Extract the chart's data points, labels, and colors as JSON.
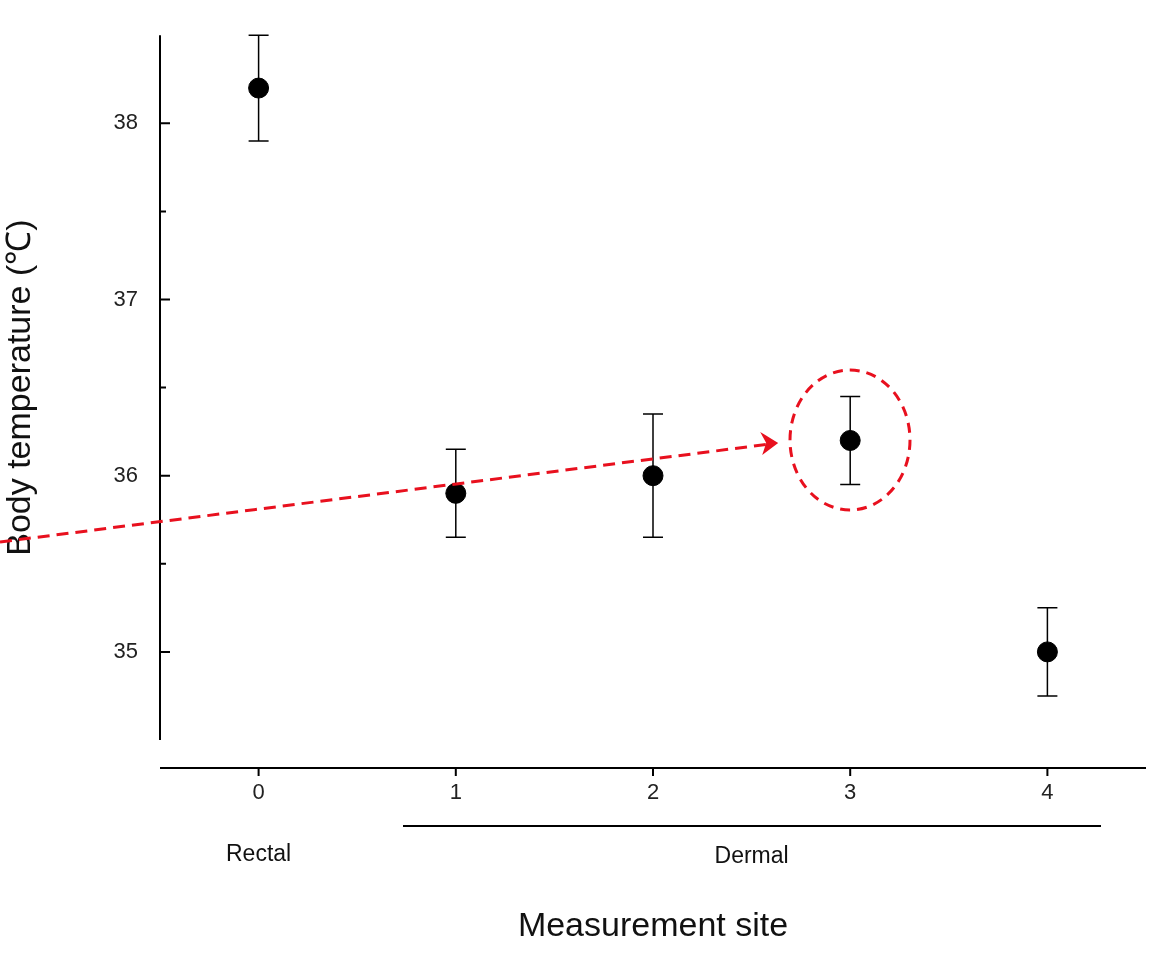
{
  "chart_data": {
    "type": "scatter",
    "xlabel": "Measurement site",
    "ylabel": "Body temperature (℃)",
    "x": [
      0,
      1,
      2,
      3,
      4
    ],
    "series": [
      {
        "color": "#000000",
        "values": [
          38.2,
          35.9,
          36.0,
          36.2,
          35.0
        ],
        "errors": [
          [
            37.9,
            38.5
          ],
          [
            35.65,
            36.15
          ],
          [
            35.65,
            36.35
          ],
          [
            35.95,
            36.45
          ],
          [
            34.75,
            35.25
          ]
        ]
      }
    ],
    "xlim": [
      -0.5,
      4.5
    ],
    "xticks": [
      0,
      1,
      2,
      3,
      4
    ],
    "ylim": [
      34.5,
      38.5
    ],
    "yticks": [
      35,
      {
        "value": 35.5,
        "label": null
      },
      36,
      {
        "value": 36.5,
        "label": null
      },
      37,
      {
        "value": 37.5,
        "label": null
      },
      38
    ],
    "marker": "circle",
    "annotations": [
      "Rectal",
      "Dermal"
    ]
  }
}
